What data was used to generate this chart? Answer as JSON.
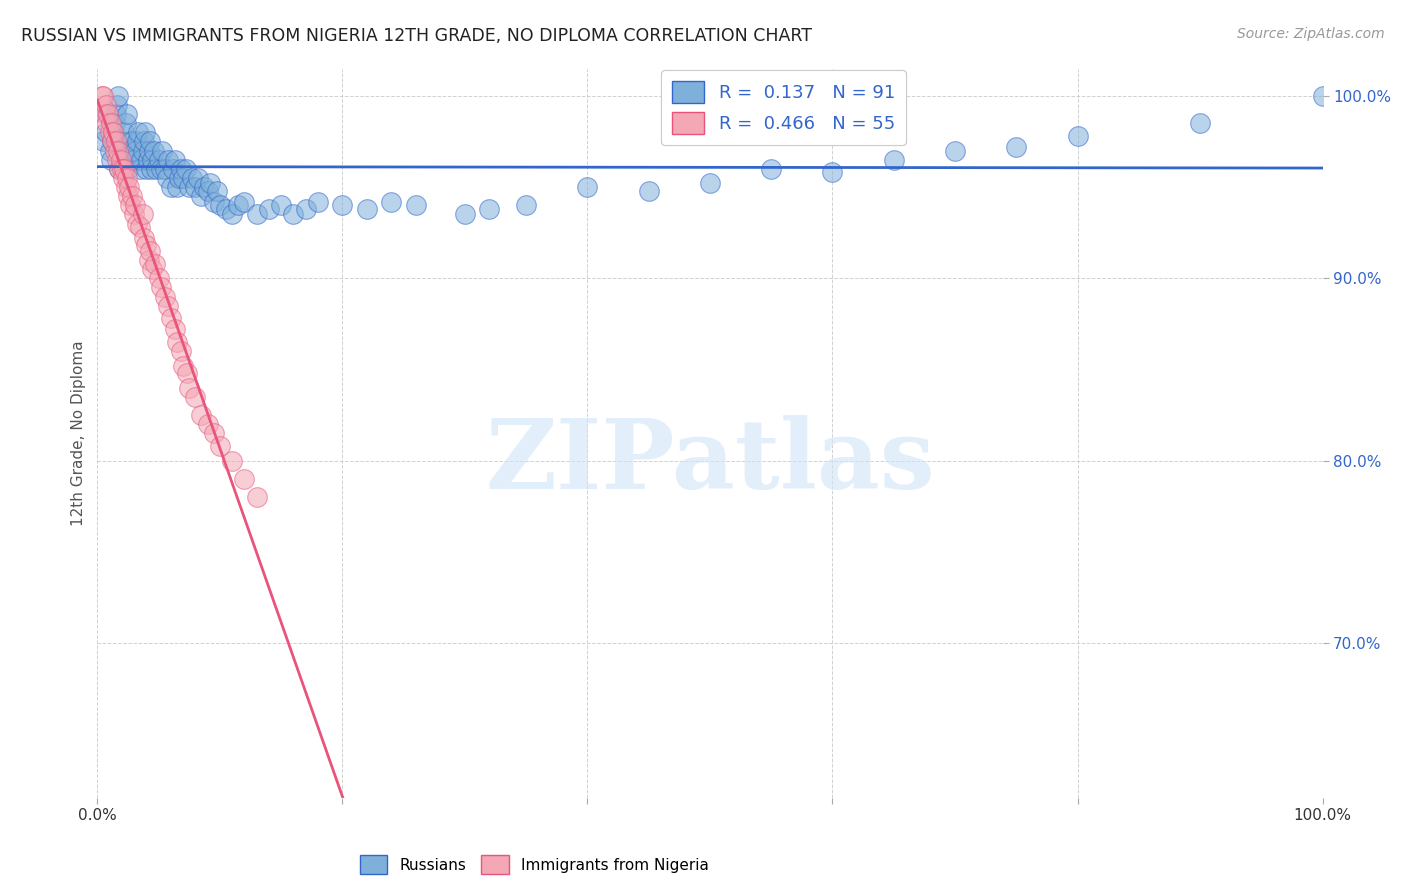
{
  "title": "RUSSIAN VS IMMIGRANTS FROM NIGERIA 12TH GRADE, NO DIPLOMA CORRELATION CHART",
  "source": "Source: ZipAtlas.com",
  "ylabel": "12th Grade, No Diploma",
  "watermark": "ZIPatlas",
  "r_russian": 0.137,
  "n_russian": 91,
  "r_nigeria": 0.466,
  "n_nigeria": 55,
  "xlim": [
    0.0,
    1.0
  ],
  "ylim": [
    0.615,
    1.015
  ],
  "color_russian": "#7EB0D9",
  "color_nigeria": "#F4A7B5",
  "trendline_russian": "#3366CC",
  "trendline_nigeria": "#E8547A",
  "background_color": "#FFFFFF",
  "grid_color": "#CCCCCC",
  "russian_x": [
    0.005,
    0.007,
    0.008,
    0.01,
    0.011,
    0.012,
    0.013,
    0.014,
    0.015,
    0.016,
    0.017,
    0.018,
    0.02,
    0.021,
    0.022,
    0.023,
    0.024,
    0.025,
    0.026,
    0.027,
    0.028,
    0.03,
    0.031,
    0.032,
    0.033,
    0.035,
    0.036,
    0.037,
    0.038,
    0.039,
    0.04,
    0.041,
    0.042,
    0.043,
    0.044,
    0.045,
    0.046,
    0.048,
    0.05,
    0.052,
    0.053,
    0.055,
    0.057,
    0.058,
    0.06,
    0.062,
    0.063,
    0.065,
    0.067,
    0.068,
    0.07,
    0.072,
    0.075,
    0.077,
    0.08,
    0.082,
    0.085,
    0.087,
    0.09,
    0.092,
    0.095,
    0.098,
    0.1,
    0.105,
    0.11,
    0.115,
    0.12,
    0.13,
    0.14,
    0.15,
    0.16,
    0.17,
    0.18,
    0.2,
    0.22,
    0.24,
    0.26,
    0.3,
    0.32,
    0.35,
    0.4,
    0.45,
    0.5,
    0.55,
    0.6,
    0.65,
    0.7,
    0.75,
    0.8,
    0.9,
    1.0
  ],
  "russian_y": [
    0.975,
    0.98,
    0.99,
    0.97,
    0.965,
    0.975,
    0.98,
    0.985,
    0.99,
    0.995,
    1.0,
    0.96,
    0.97,
    0.975,
    0.98,
    0.985,
    0.99,
    0.96,
    0.965,
    0.97,
    0.975,
    0.965,
    0.97,
    0.975,
    0.98,
    0.96,
    0.965,
    0.97,
    0.975,
    0.98,
    0.96,
    0.965,
    0.97,
    0.975,
    0.96,
    0.965,
    0.97,
    0.96,
    0.965,
    0.96,
    0.97,
    0.96,
    0.955,
    0.965,
    0.95,
    0.96,
    0.965,
    0.95,
    0.955,
    0.96,
    0.955,
    0.96,
    0.95,
    0.955,
    0.95,
    0.955,
    0.945,
    0.95,
    0.948,
    0.952,
    0.942,
    0.948,
    0.94,
    0.938,
    0.935,
    0.94,
    0.942,
    0.935,
    0.938,
    0.94,
    0.935,
    0.938,
    0.942,
    0.94,
    0.938,
    0.942,
    0.94,
    0.935,
    0.938,
    0.94,
    0.95,
    0.948,
    0.952,
    0.96,
    0.958,
    0.965,
    0.97,
    0.972,
    0.978,
    0.985,
    1.0
  ],
  "nigeria_x": [
    0.004,
    0.005,
    0.006,
    0.007,
    0.008,
    0.009,
    0.01,
    0.011,
    0.012,
    0.013,
    0.014,
    0.015,
    0.016,
    0.017,
    0.018,
    0.019,
    0.02,
    0.021,
    0.022,
    0.023,
    0.024,
    0.025,
    0.026,
    0.027,
    0.028,
    0.03,
    0.031,
    0.032,
    0.035,
    0.037,
    0.038,
    0.04,
    0.042,
    0.043,
    0.045,
    0.047,
    0.05,
    0.052,
    0.055,
    0.058,
    0.06,
    0.063,
    0.065,
    0.068,
    0.07,
    0.073,
    0.075,
    0.08,
    0.085,
    0.09,
    0.095,
    0.1,
    0.11,
    0.12,
    0.13
  ],
  "nigeria_y": [
    1.0,
    1.0,
    0.99,
    0.995,
    0.985,
    0.99,
    0.98,
    0.985,
    0.975,
    0.98,
    0.97,
    0.975,
    0.965,
    0.97,
    0.96,
    0.965,
    0.96,
    0.955,
    0.96,
    0.95,
    0.955,
    0.945,
    0.95,
    0.94,
    0.945,
    0.935,
    0.94,
    0.93,
    0.928,
    0.935,
    0.922,
    0.918,
    0.91,
    0.915,
    0.905,
    0.908,
    0.9,
    0.895,
    0.89,
    0.885,
    0.878,
    0.872,
    0.865,
    0.86,
    0.852,
    0.848,
    0.84,
    0.835,
    0.825,
    0.82,
    0.815,
    0.808,
    0.8,
    0.79,
    0.78
  ]
}
